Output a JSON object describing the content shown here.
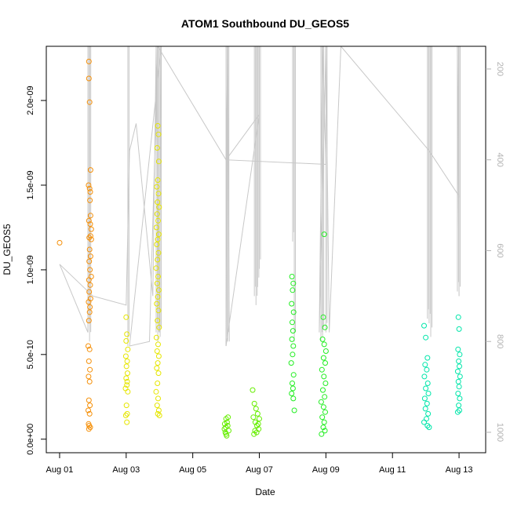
{
  "chart_data": {
    "type": "scatter",
    "title": "ATOM1 Southbound DU_GEOS5",
    "xlabel": "Date",
    "ylabel": "DU_GEOS5",
    "x_axis": {
      "unit": "day of August 2016",
      "range": [
        0.6,
        13.8
      ],
      "ticks": [
        {
          "value": 1,
          "label": "Aug 01"
        },
        {
          "value": 3,
          "label": "Aug 03"
        },
        {
          "value": 5,
          "label": "Aug 05"
        },
        {
          "value": 7,
          "label": "Aug 07"
        },
        {
          "value": 9,
          "label": "Aug 09"
        },
        {
          "value": 11,
          "label": "Aug 11"
        },
        {
          "value": 13,
          "label": "Aug 13"
        }
      ]
    },
    "y_axis": {
      "range": [
        -8e-11,
        2.32e-09
      ],
      "ticks": [
        {
          "value": 0,
          "label": "0.0e+00"
        },
        {
          "value": 5e-10,
          "label": "5.0e-10"
        },
        {
          "value": 1e-09,
          "label": "1.0e-09"
        },
        {
          "value": 1.5e-09,
          "label": "1.5e-09"
        },
        {
          "value": 2e-09,
          "label": "2.0e-09"
        }
      ]
    },
    "y2_axis": {
      "quantity": "pressure",
      "inverted": true,
      "range": [
        1045,
        150
      ],
      "ticks": [
        {
          "value": 200,
          "label": "200"
        },
        {
          "value": 400,
          "label": "400"
        },
        {
          "value": 600,
          "label": "600"
        },
        {
          "value": 800,
          "label": "800"
        },
        {
          "value": 1000,
          "label": "1000"
        }
      ]
    },
    "grid": false,
    "legend": "none",
    "colors": {
      "pressure_line": "#c8c8c8",
      "frame": "#000000",
      "right_axis": "#b3b3b3"
    },
    "pressure_track": [
      [
        1.0,
        630
      ],
      [
        1.85,
        780
      ],
      [
        1.0,
        630
      ],
      [
        2.0,
        700
      ],
      [
        3.0,
        720
      ],
      [
        3.1,
        380
      ],
      [
        3.3,
        320
      ],
      [
        3.8,
        700
      ],
      [
        3.9,
        120
      ],
      [
        4.0,
        780
      ],
      [
        4.05,
        120
      ],
      [
        3.1,
        810
      ],
      [
        3.7,
        800
      ],
      [
        3.95,
        120
      ],
      [
        6.0,
        400
      ],
      [
        6.05,
        120
      ],
      [
        6.1,
        800
      ],
      [
        6.05,
        140
      ],
      [
        6.02,
        400
      ],
      [
        6.0,
        810
      ],
      [
        7.0,
        300
      ],
      [
        6.0,
        400
      ],
      [
        9.0,
        410
      ],
      [
        8.9,
        120
      ],
      [
        8.8,
        780
      ],
      [
        9.0,
        120
      ],
      [
        9.1,
        780
      ],
      [
        9.45,
        150
      ],
      [
        12.1,
        380
      ],
      [
        13.0,
        480
      ],
      [
        12.95,
        120
      ],
      [
        13.0,
        700
      ]
    ],
    "pressure_profiles": [
      {
        "x": 1.85,
        "top": 120,
        "bottom": 780
      },
      {
        "x": 1.9,
        "top": 120,
        "bottom": 800
      },
      {
        "x": 3.05,
        "top": 120,
        "bottom": 810
      },
      {
        "x": 3.9,
        "top": 120,
        "bottom": 780
      },
      {
        "x": 3.95,
        "top": 120,
        "bottom": 800
      },
      {
        "x": 4.02,
        "top": 120,
        "bottom": 790
      },
      {
        "x": 6.0,
        "top": 120,
        "bottom": 810
      },
      {
        "x": 6.05,
        "top": 120,
        "bottom": 800
      },
      {
        "x": 6.85,
        "top": 120,
        "bottom": 700
      },
      {
        "x": 6.9,
        "top": 120,
        "bottom": 720
      },
      {
        "x": 6.95,
        "top": 120,
        "bottom": 680
      },
      {
        "x": 7.0,
        "top": 120,
        "bottom": 640
      },
      {
        "x": 8.0,
        "top": 120,
        "bottom": 580
      },
      {
        "x": 8.05,
        "top": 120,
        "bottom": 800
      },
      {
        "x": 8.85,
        "top": 120,
        "bottom": 800
      },
      {
        "x": 8.9,
        "top": 120,
        "bottom": 790
      },
      {
        "x": 9.0,
        "top": 120,
        "bottom": 780
      },
      {
        "x": 12.05,
        "top": 120,
        "bottom": 750
      },
      {
        "x": 12.1,
        "top": 120,
        "bottom": 760
      },
      {
        "x": 12.15,
        "top": 120,
        "bottom": 790
      },
      {
        "x": 12.95,
        "top": 120,
        "bottom": 690
      },
      {
        "x": 13.0,
        "top": 120,
        "bottom": 700
      }
    ],
    "series": [
      {
        "color": "#f5900a",
        "points": [
          [
            1.0,
            1.16e-09
          ],
          [
            1.88,
            2.23e-09
          ],
          [
            1.88,
            2.13e-09
          ],
          [
            1.9,
            1.99e-09
          ],
          [
            1.93,
            1.59e-09
          ],
          [
            1.87,
            1.5e-09
          ],
          [
            1.9,
            1.48e-09
          ],
          [
            1.92,
            1.46e-09
          ],
          [
            1.91,
            1.41e-09
          ],
          [
            1.93,
            1.32e-09
          ],
          [
            1.88,
            1.29e-09
          ],
          [
            1.92,
            1.27e-09
          ],
          [
            1.95,
            1.24e-09
          ],
          [
            1.93,
            1.2e-09
          ],
          [
            1.89,
            1.19e-09
          ],
          [
            1.95,
            1.18e-09
          ],
          [
            1.9,
            1.12e-09
          ],
          [
            1.93,
            1.08e-09
          ],
          [
            1.89,
            1.05e-09
          ],
          [
            1.91,
            1e-09
          ],
          [
            1.95,
            9.6e-10
          ],
          [
            1.88,
            9.4e-10
          ],
          [
            1.92,
            9.1e-10
          ],
          [
            1.89,
            8.7e-10
          ],
          [
            1.93,
            8.3e-10
          ],
          [
            1.87,
            8.1e-10
          ],
          [
            1.91,
            7.8e-10
          ],
          [
            1.9,
            7.5e-10
          ],
          [
            1.88,
            7e-10
          ],
          [
            1.86,
            5.5e-10
          ],
          [
            1.9,
            5.3e-10
          ],
          [
            1.88,
            4.6e-10
          ],
          [
            1.91,
            4.1e-10
          ],
          [
            1.87,
            3.7e-10
          ],
          [
            1.9,
            3.4e-10
          ],
          [
            1.88,
            2.3e-10
          ],
          [
            1.91,
            2e-10
          ],
          [
            1.86,
            1.7e-10
          ],
          [
            1.9,
            1.5e-10
          ],
          [
            1.87,
            9e-11
          ],
          [
            1.89,
            8e-11
          ],
          [
            1.92,
            7e-11
          ],
          [
            1.88,
            6e-11
          ]
        ]
      },
      {
        "color": "#e6e600",
        "points": [
          [
            3.0,
            7.2e-10
          ],
          [
            3.02,
            6.2e-10
          ],
          [
            3.0,
            5.8e-10
          ],
          [
            3.05,
            5.3e-10
          ],
          [
            2.99,
            4.9e-10
          ],
          [
            3.03,
            4.6e-10
          ],
          [
            3.01,
            4.3e-10
          ],
          [
            3.04,
            3.9e-10
          ],
          [
            3.0,
            3.6e-10
          ],
          [
            3.03,
            3.4e-10
          ],
          [
            3.02,
            3.2e-10
          ],
          [
            2.98,
            3e-10
          ],
          [
            3.05,
            2.8e-10
          ],
          [
            3.01,
            2e-10
          ],
          [
            3.03,
            1.5e-10
          ],
          [
            2.99,
            1.4e-10
          ],
          [
            3.02,
            1e-10
          ],
          [
            3.95,
            1.85e-09
          ],
          [
            3.97,
            1.8e-09
          ],
          [
            3.93,
            1.72e-09
          ],
          [
            3.98,
            1.64e-09
          ],
          [
            3.95,
            1.53e-09
          ],
          [
            3.92,
            1.49e-09
          ],
          [
            3.97,
            1.45e-09
          ],
          [
            3.94,
            1.4e-09
          ],
          [
            3.99,
            1.37e-09
          ],
          [
            3.93,
            1.33e-09
          ],
          [
            3.96,
            1.29e-09
          ],
          [
            3.91,
            1.25e-09
          ],
          [
            3.98,
            1.21e-09
          ],
          [
            3.95,
            1.18e-09
          ],
          [
            3.92,
            1.15e-09
          ],
          [
            3.97,
            1.1e-09
          ],
          [
            3.94,
            1.06e-09
          ],
          [
            3.9,
            1.01e-09
          ],
          [
            3.96,
            9.6e-10
          ],
          [
            3.93,
            9.2e-10
          ],
          [
            3.98,
            8.8e-10
          ],
          [
            3.95,
            8.4e-10
          ],
          [
            3.92,
            8e-10
          ],
          [
            3.97,
            7.6e-10
          ],
          [
            3.94,
            7e-10
          ],
          [
            3.99,
            6.6e-10
          ],
          [
            3.91,
            6e-10
          ],
          [
            3.96,
            5.6e-10
          ],
          [
            3.93,
            5.2e-10
          ],
          [
            3.98,
            4.9e-10
          ],
          [
            3.95,
            4.5e-10
          ],
          [
            3.92,
            4.2e-10
          ],
          [
            3.97,
            3.9e-10
          ],
          [
            3.94,
            3.3e-10
          ],
          [
            3.9,
            2.8e-10
          ],
          [
            3.96,
            2.4e-10
          ],
          [
            3.93,
            2e-10
          ],
          [
            3.98,
            1.7e-10
          ],
          [
            3.95,
            1.5e-10
          ],
          [
            4.0,
            1.4e-10
          ]
        ]
      },
      {
        "color": "#66ee00",
        "points": [
          [
            5.95,
            6e-11
          ],
          [
            6.0,
            1.2e-10
          ],
          [
            6.05,
            8e-11
          ],
          [
            5.98,
            4e-11
          ],
          [
            6.03,
            1e-10
          ],
          [
            6.0,
            3e-11
          ],
          [
            6.08,
            5e-11
          ],
          [
            5.96,
            9e-11
          ],
          [
            6.02,
            2e-11
          ],
          [
            6.06,
            1.3e-10
          ],
          [
            5.99,
            7e-11
          ],
          [
            6.8,
            2.9e-10
          ],
          [
            6.85,
            2.1e-10
          ],
          [
            6.9,
            1.8e-10
          ],
          [
            6.95,
            1.5e-10
          ],
          [
            6.82,
            1.3e-10
          ],
          [
            6.88,
            1e-10
          ],
          [
            6.93,
            8e-11
          ],
          [
            6.98,
            6e-11
          ],
          [
            7.0,
            1.2e-10
          ],
          [
            6.87,
            5e-11
          ],
          [
            6.92,
            4e-11
          ],
          [
            6.97,
            9e-11
          ],
          [
            6.84,
            3e-11
          ]
        ]
      },
      {
        "color": "#22ee22",
        "points": [
          [
            7.98,
            9.6e-10
          ],
          [
            8.02,
            9.2e-10
          ],
          [
            8.0,
            8.8e-10
          ],
          [
            7.97,
            8e-10
          ],
          [
            8.03,
            7.5e-10
          ],
          [
            7.99,
            6.9e-10
          ],
          [
            8.01,
            6.4e-10
          ],
          [
            7.98,
            5.9e-10
          ],
          [
            8.02,
            5.5e-10
          ],
          [
            8.0,
            5e-10
          ],
          [
            7.96,
            4.5e-10
          ],
          [
            8.03,
            3.8e-10
          ],
          [
            7.99,
            3.3e-10
          ],
          [
            8.01,
            3e-10
          ],
          [
            7.97,
            2.7e-10
          ],
          [
            8.02,
            2.4e-10
          ],
          [
            8.05,
            1.7e-10
          ],
          [
            8.95,
            1.21e-09
          ],
          [
            8.92,
            7.2e-10
          ],
          [
            8.97,
            6.6e-10
          ],
          [
            8.9,
            5.9e-10
          ],
          [
            8.95,
            5.6e-10
          ],
          [
            9.0,
            5.2e-10
          ],
          [
            8.93,
            4.8e-10
          ],
          [
            8.98,
            4.5e-10
          ],
          [
            8.88,
            4.1e-10
          ],
          [
            8.94,
            3.7e-10
          ],
          [
            8.99,
            3.3e-10
          ],
          [
            8.91,
            2.9e-10
          ],
          [
            8.96,
            2.5e-10
          ],
          [
            8.86,
            2.2e-10
          ],
          [
            8.93,
            1.9e-10
          ],
          [
            8.98,
            1.6e-10
          ],
          [
            8.89,
            1.3e-10
          ],
          [
            8.95,
            1e-10
          ],
          [
            8.92,
            7e-11
          ],
          [
            8.97,
            5e-11
          ],
          [
            8.87,
            3e-11
          ]
        ]
      },
      {
        "color": "#00e6aa",
        "points": [
          [
            11.95,
            6.7e-10
          ],
          [
            12.0,
            6e-10
          ],
          [
            12.05,
            4.8e-10
          ],
          [
            11.98,
            4.4e-10
          ],
          [
            12.03,
            4.1e-10
          ],
          [
            11.96,
            3.7e-10
          ],
          [
            12.06,
            3.3e-10
          ],
          [
            12.0,
            3e-10
          ],
          [
            12.08,
            2.7e-10
          ],
          [
            11.97,
            2.4e-10
          ],
          [
            12.04,
            2.1e-10
          ],
          [
            11.99,
            1.8e-10
          ],
          [
            12.07,
            1.5e-10
          ],
          [
            12.02,
            1.2e-10
          ],
          [
            11.95,
            1e-10
          ],
          [
            12.05,
            8e-11
          ],
          [
            12.1,
            7e-11
          ],
          [
            12.98,
            7.2e-10
          ],
          [
            13.0,
            6.5e-10
          ],
          [
            12.97,
            5.3e-10
          ],
          [
            13.02,
            5e-10
          ],
          [
            12.99,
            4.6e-10
          ],
          [
            13.01,
            4.3e-10
          ],
          [
            12.96,
            4e-10
          ],
          [
            13.03,
            3.7e-10
          ],
          [
            12.98,
            3.4e-10
          ],
          [
            13.0,
            3.1e-10
          ],
          [
            12.97,
            2.7e-10
          ],
          [
            13.02,
            2.4e-10
          ],
          [
            12.99,
            2e-10
          ],
          [
            13.01,
            1.7e-10
          ],
          [
            12.96,
            1.6e-10
          ]
        ]
      }
    ]
  }
}
